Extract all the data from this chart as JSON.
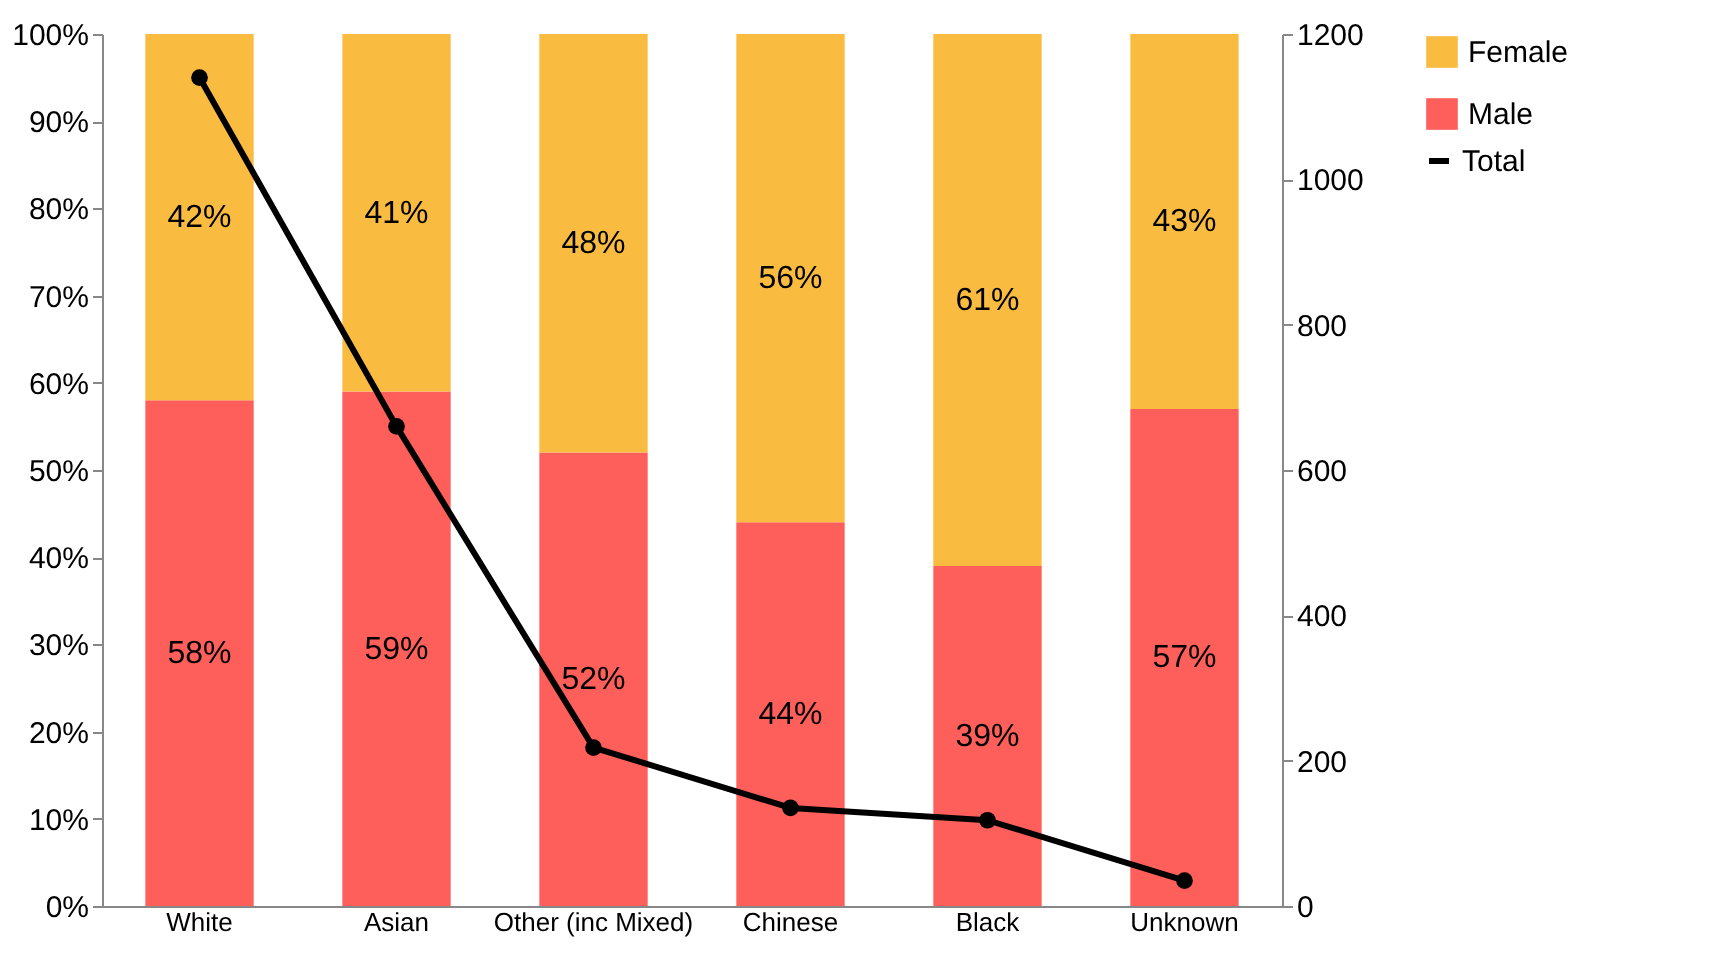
{
  "chart_data": {
    "type": "bar",
    "stacked": true,
    "categories": [
      "White",
      "Asian",
      "Other (inc Mixed)",
      "Chinese",
      "Black",
      "Unknown"
    ],
    "series": [
      {
        "name": "Male",
        "color": "#fe5f5a",
        "values": [
          58,
          59,
          52,
          44,
          39,
          57
        ],
        "value_labels": [
          "58%",
          "59%",
          "52%",
          "44%",
          "39%",
          "57%"
        ]
      },
      {
        "name": "Female",
        "color": "#f9bc41",
        "values": [
          42,
          41,
          48,
          56,
          61,
          43
        ],
        "value_labels": [
          "42%",
          "41%",
          "48%",
          "56%",
          "61%",
          "43%"
        ]
      },
      {
        "name": "Total",
        "type": "line",
        "axis": "y2",
        "color": "#000000",
        "marker": "circle",
        "values": [
          1140,
          660,
          218,
          135,
          118,
          35
        ]
      }
    ],
    "ylim": [
      0,
      100
    ],
    "yticks": [
      {
        "value": 0,
        "label": "0%"
      },
      {
        "value": 10,
        "label": "10%"
      },
      {
        "value": 20,
        "label": "20%"
      },
      {
        "value": 30,
        "label": "30%"
      },
      {
        "value": 40,
        "label": "40%"
      },
      {
        "value": 50,
        "label": "50%"
      },
      {
        "value": 60,
        "label": "60%"
      },
      {
        "value": 70,
        "label": "70%"
      },
      {
        "value": 80,
        "label": "80%"
      },
      {
        "value": 90,
        "label": "90%"
      },
      {
        "value": 100,
        "label": "100%"
      }
    ],
    "y2lim": [
      0,
      1200
    ],
    "y2ticks": [
      0,
      200,
      400,
      600,
      800,
      1000,
      1200
    ],
    "grid": false,
    "legend": "right"
  }
}
